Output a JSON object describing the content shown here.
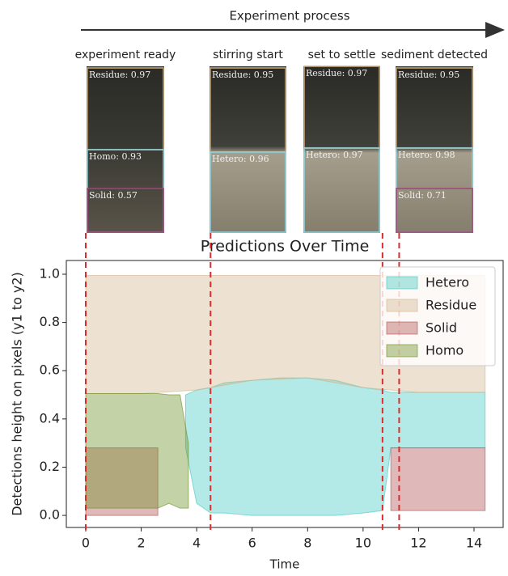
{
  "header": {
    "title": "Experiment process"
  },
  "stages": [
    {
      "label": "experiment ready",
      "detections": [
        "Residue: 0.97",
        "Homo: 0.93",
        "Solid: 0.57"
      ]
    },
    {
      "label": "stirring start",
      "detections": [
        "Residue: 0.95",
        "Hetero: 0.96"
      ]
    },
    {
      "label": "set to settle",
      "detections": [
        "Residue: 0.97",
        "Hetero: 0.97"
      ]
    },
    {
      "label": "sediment detected",
      "detections": [
        "Residue: 0.95",
        "Hetero: 0.98",
        "Solid: 0.71"
      ]
    }
  ],
  "chart_data": {
    "type": "band",
    "title": "Predictions Over Time",
    "x_label": "Time",
    "y_label": "Detections height on pixels (y1 to y2)",
    "xlim": [
      -0.7,
      15.05
    ],
    "ylim": [
      -0.05,
      1.057
    ],
    "xticks": [
      0,
      2,
      4,
      6,
      8,
      10,
      12,
      14
    ],
    "yticks": [
      {
        "value": 0,
        "label": "0.0"
      },
      {
        "value": 0.2,
        "label": "0.2"
      },
      {
        "value": 0.4,
        "label": "0.4"
      },
      {
        "value": 0.6,
        "label": "0.6"
      },
      {
        "value": 0.8,
        "label": "0.8"
      },
      {
        "value": 1,
        "label": "1.0"
      }
    ],
    "legend": "upper right",
    "event_lines": [
      0,
      4.5,
      10.7,
      11.3
    ],
    "series": [
      {
        "name": "Hetero",
        "color": "#40c8c0",
        "x": [
          3.6,
          4,
          4.5,
          5,
          6,
          7,
          8,
          9,
          10,
          10.7,
          11,
          12,
          13,
          14.4
        ],
        "y1": [
          0.28,
          0.05,
          0.01,
          0.01,
          0,
          0,
          0,
          0,
          0.01,
          0.02,
          0.28,
          0.28,
          0.28,
          0.28
        ],
        "y2": [
          0.5,
          0.52,
          0.53,
          0.55,
          0.56,
          0.57,
          0.57,
          0.56,
          0.53,
          0.52,
          0.51,
          0.51,
          0.51,
          0.51
        ]
      },
      {
        "name": "Residue",
        "color": "#d2b48c",
        "x": [
          0,
          2,
          4,
          6,
          8,
          10,
          12,
          14.4
        ],
        "y1": [
          0.505,
          0.505,
          0.52,
          0.56,
          0.57,
          0.53,
          0.51,
          0.51
        ],
        "y2": [
          0.995,
          0.995,
          0.995,
          0.995,
          0.995,
          0.995,
          0.995,
          0.995
        ]
      },
      {
        "name": "Solid",
        "color": "#b05050",
        "x": [
          0,
          1,
          2.6,
          7,
          11,
          12,
          14.4
        ],
        "y1": [
          0,
          0,
          0,
          null,
          0.02,
          0.02,
          0.02
        ],
        "y2": [
          0.28,
          0.28,
          0.28,
          null,
          0.28,
          0.28,
          0.28
        ]
      },
      {
        "name": "Homo",
        "color": "#6b8e23",
        "x": [
          0,
          1,
          2.6,
          3,
          3.4,
          3.7
        ],
        "y1": [
          0.03,
          0.03,
          0.03,
          0.05,
          0.03,
          0.03
        ],
        "y2": [
          0.505,
          0.505,
          0.505,
          0.5,
          0.5,
          0.3
        ]
      }
    ]
  }
}
